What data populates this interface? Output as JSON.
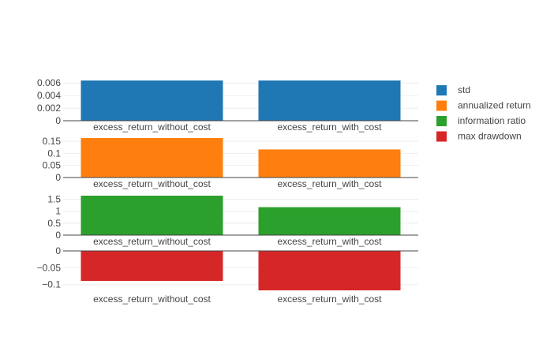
{
  "chart_data": {
    "type": "bar",
    "categories": [
      "excess_return_without_cost",
      "excess_return_with_cost"
    ],
    "legend_position": "top-right",
    "grid": true,
    "panels": [
      {
        "series_name": "std",
        "color": "#1f77b4",
        "values": [
          0.0064,
          0.0064
        ],
        "ylim": [
          0,
          0.0064
        ],
        "yticks": [
          0,
          0.002,
          0.004,
          0.006
        ],
        "ytick_labels": [
          "0",
          "0.002",
          "0.004",
          "0.006"
        ]
      },
      {
        "series_name": "annualized return",
        "color": "#ff7f0e",
        "values": [
          0.163,
          0.116
        ],
        "ylim": [
          0,
          0.163
        ],
        "yticks": [
          0,
          0.05,
          0.1,
          0.15
        ],
        "ytick_labels": [
          "0",
          "0.05",
          "0.1",
          "0.15"
        ]
      },
      {
        "series_name": "information ratio",
        "color": "#2ca02c",
        "values": [
          1.65,
          1.17
        ],
        "ylim": [
          0,
          1.65
        ],
        "yticks": [
          0,
          0.5,
          1,
          1.5
        ],
        "ytick_labels": [
          "0",
          "0.5",
          "1",
          "1.5"
        ]
      },
      {
        "series_name": "max drawdown",
        "color": "#d62728",
        "values": [
          -0.089,
          -0.117
        ],
        "ylim": [
          -0.117,
          0
        ],
        "yticks": [
          -0.1,
          -0.05,
          0
        ],
        "ytick_labels": [
          "−0.1",
          "−0.05",
          "0"
        ]
      }
    ]
  }
}
